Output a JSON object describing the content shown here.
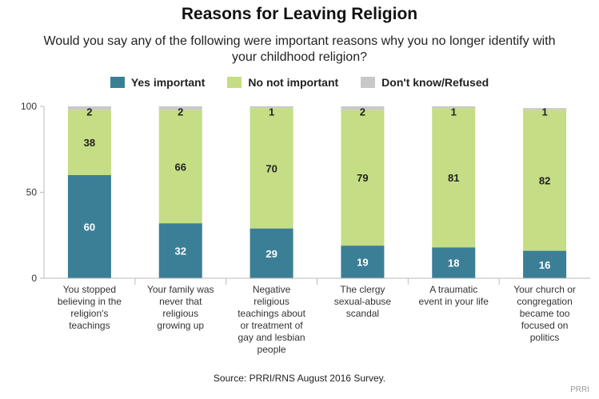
{
  "chart_data": {
    "type": "bar",
    "stacked": true,
    "orientation": "vertical",
    "title": "Reasons for Leaving Religion",
    "subtitle": "Would you say any of the following were important reasons why you no longer identify with your childhood religion?",
    "categories": [
      "You stopped believing in the religion's teachings",
      "Your family was never that religious growing up",
      "Negative religious teachings about or treatment of gay and lesbian people",
      "The clergy sexual-abuse scandal",
      "A traumatic event in your life",
      "Your church or congregation became too focused on politics"
    ],
    "category_lines": [
      [
        "You stopped",
        "believing in the",
        "religion's",
        "teachings"
      ],
      [
        "Your family was",
        "never that",
        "religious",
        "growing up"
      ],
      [
        "Negative",
        "religious",
        "teachings about",
        "or treatment of",
        "gay and lesbian",
        "people"
      ],
      [
        "The clergy",
        "sexual-abuse",
        "scandal"
      ],
      [
        "A traumatic",
        "event in your life"
      ],
      [
        "Your church or",
        "congregation",
        "became too",
        "focused on",
        "politics"
      ]
    ],
    "series": [
      {
        "name": "Yes important",
        "color": "#3b7f96",
        "label_color": "#ffffff",
        "values": [
          60,
          32,
          29,
          19,
          18,
          16
        ]
      },
      {
        "name": "No not important",
        "color": "#c5dd84",
        "label_color": "#222222",
        "values": [
          38,
          66,
          70,
          79,
          81,
          82
        ]
      },
      {
        "name": "Don't know/Refused",
        "color": "#c8c8c8",
        "label_color": "#222222",
        "values": [
          2,
          2,
          1,
          2,
          1,
          1
        ]
      }
    ],
    "data_labels_shown": [
      true,
      true,
      false
    ],
    "top_labels": [
      "2",
      "2",
      "1",
      "2",
      "1",
      "1"
    ],
    "ylim": [
      0,
      100
    ],
    "yticks": [
      "0",
      "50",
      "100"
    ],
    "grid": false,
    "legend_position": "top"
  },
  "source": "Source: PRRI/RNS August 2016 Survey.",
  "credit": "PRRI"
}
